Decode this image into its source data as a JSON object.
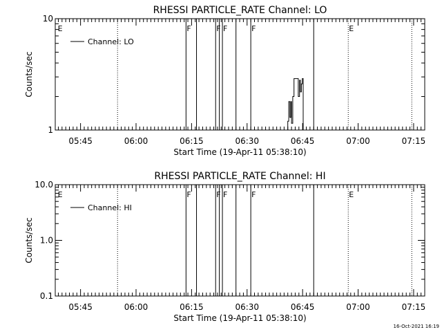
{
  "footer_timestamp": "16-Oct-2021 16:19",
  "chart_data": [
    {
      "type": "line",
      "title": "RHESSI PARTICLE_RATE Channel: LO",
      "xlabel": "Start Time (19-Apr-11 05:38:10)",
      "ylabel": "Counts/sec",
      "yscale": "log",
      "ylim": [
        1,
        10
      ],
      "yticks": [
        {
          "v": 1,
          "label": "1"
        },
        {
          "v": 10,
          "label": "10"
        }
      ],
      "xlim": [
        "05:38:10",
        "07:18:00"
      ],
      "xticks": [
        {
          "t": "05:45",
          "label": "05:45"
        },
        {
          "t": "06:00",
          "label": "06:00"
        },
        {
          "t": "06:15",
          "label": "06:15"
        },
        {
          "t": "06:30",
          "label": "06:30"
        },
        {
          "t": "06:45",
          "label": "06:45"
        },
        {
          "t": "07:00",
          "label": "07:00"
        },
        {
          "t": "07:15",
          "label": "07:15"
        }
      ],
      "legend": {
        "label": "Channel: LO",
        "position": "top-left"
      },
      "markers": [
        {
          "t": "05:38:40",
          "label": "E",
          "style": "none"
        },
        {
          "t": "05:55:00",
          "label": "",
          "style": "dotted"
        },
        {
          "t": "06:13:30",
          "label": "F",
          "style": "solid"
        },
        {
          "t": "06:16:20",
          "label": "",
          "style": "solid"
        },
        {
          "t": "06:21:30",
          "label": "F",
          "style": "solid"
        },
        {
          "t": "06:22:30",
          "label": "",
          "style": "solid"
        },
        {
          "t": "06:23:20",
          "label": "F",
          "style": "solid"
        },
        {
          "t": "06:27:00",
          "label": "",
          "style": "solid"
        },
        {
          "t": "06:31:00",
          "label": "F",
          "style": "solid"
        },
        {
          "t": "06:48:00",
          "label": "",
          "style": "solid"
        },
        {
          "t": "06:57:20",
          "label": "E",
          "style": "dotted"
        },
        {
          "t": "07:14:30",
          "label": "",
          "style": "dotted"
        }
      ],
      "series": [
        {
          "x": [
            "06:41:00",
            "06:41:00",
            "06:41:15",
            "06:41:15",
            "06:41:35",
            "06:41:35",
            "06:41:50",
            "06:41:50",
            "06:42:00",
            "06:42:00",
            "06:42:20",
            "06:42:20",
            "06:42:40",
            "06:42:40",
            "06:43:10",
            "06:43:10",
            "06:43:50",
            "06:43:50",
            "06:44:10",
            "06:44:10",
            "06:44:25",
            "06:44:25",
            "06:44:40",
            "06:44:40",
            "06:44:55",
            "06:44:55",
            "06:45:10",
            "06:45:10"
          ],
          "y": [
            1,
            1.2,
            1.2,
            1.8,
            1.8,
            1.3,
            1.3,
            1.8,
            1.8,
            1.15,
            1.15,
            2.0,
            2.0,
            2.9,
            2.9,
            2.9,
            2.9,
            2.0,
            2.0,
            2.8,
            2.8,
            2.2,
            2.2,
            2.6,
            2.6,
            2.9,
            2.9,
            1
          ]
        }
      ]
    },
    {
      "type": "line",
      "title": "RHESSI PARTICLE_RATE Channel: HI",
      "xlabel": "Start Time (19-Apr-11 05:38:10)",
      "ylabel": "Counts/sec",
      "yscale": "log",
      "ylim": [
        0.1,
        10
      ],
      "yticks": [
        {
          "v": 0.1,
          "label": "0.1"
        },
        {
          "v": 1,
          "label": "1.0"
        },
        {
          "v": 10,
          "label": "10.0"
        }
      ],
      "xlim": [
        "05:38:10",
        "07:18:00"
      ],
      "xticks": [
        {
          "t": "05:45",
          "label": "05:45"
        },
        {
          "t": "06:00",
          "label": "06:00"
        },
        {
          "t": "06:15",
          "label": "06:15"
        },
        {
          "t": "06:30",
          "label": "06:30"
        },
        {
          "t": "06:45",
          "label": "06:45"
        },
        {
          "t": "07:00",
          "label": "07:00"
        },
        {
          "t": "07:15",
          "label": "07:15"
        }
      ],
      "legend": {
        "label": "Channel: HI",
        "position": "top-left"
      },
      "markers": [
        {
          "t": "05:38:40",
          "label": "E",
          "style": "none"
        },
        {
          "t": "05:55:00",
          "label": "",
          "style": "dotted"
        },
        {
          "t": "06:13:30",
          "label": "F",
          "style": "solid"
        },
        {
          "t": "06:16:20",
          "label": "",
          "style": "solid"
        },
        {
          "t": "06:21:30",
          "label": "F",
          "style": "solid"
        },
        {
          "t": "06:22:30",
          "label": "",
          "style": "solid"
        },
        {
          "t": "06:23:20",
          "label": "F",
          "style": "solid"
        },
        {
          "t": "06:27:00",
          "label": "",
          "style": "solid"
        },
        {
          "t": "06:31:00",
          "label": "F",
          "style": "solid"
        },
        {
          "t": "06:48:00",
          "label": "",
          "style": "solid"
        },
        {
          "t": "06:57:20",
          "label": "E",
          "style": "dotted"
        },
        {
          "t": "07:14:30",
          "label": "",
          "style": "dotted"
        }
      ],
      "series": []
    }
  ]
}
